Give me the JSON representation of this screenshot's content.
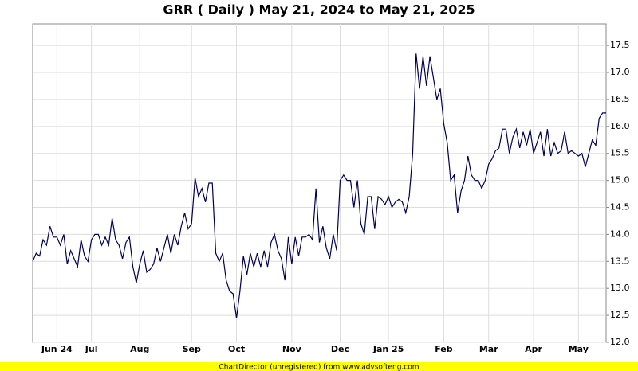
{
  "chart_data": {
    "type": "line",
    "title": "GRR ( Daily ) May 21, 2024 to May 21, 2025",
    "footer": "ChartDirector (unregistered) from www.advsofteng.com",
    "color": "#000050",
    "grid": true,
    "ylim": [
      12.0,
      17.9
    ],
    "yticks": [
      {
        "value": 12,
        "label": "12.0"
      },
      12.5,
      {
        "value": 13,
        "label": "13.0"
      },
      13.5,
      {
        "value": 14,
        "label": "14.0"
      },
      14.5,
      {
        "value": 15,
        "label": "15.0"
      },
      15.5,
      {
        "value": 16,
        "label": "16.0"
      },
      16.5,
      {
        "value": 17,
        "label": "17.0"
      },
      17.5
    ],
    "categories": [
      null,
      null,
      null,
      null,
      null,
      null,
      null,
      "Jun 24",
      null,
      null,
      null,
      null,
      null,
      null,
      null,
      null,
      null,
      "Jul",
      null,
      null,
      null,
      null,
      null,
      null,
      null,
      null,
      null,
      null,
      null,
      null,
      null,
      "Aug",
      null,
      null,
      null,
      null,
      null,
      null,
      null,
      null,
      null,
      null,
      null,
      null,
      null,
      null,
      "Sep",
      null,
      null,
      null,
      null,
      null,
      null,
      null,
      null,
      null,
      null,
      null,
      null,
      "Oct",
      null,
      null,
      null,
      null,
      null,
      null,
      null,
      null,
      null,
      null,
      null,
      null,
      null,
      null,
      null,
      "Nov",
      null,
      null,
      null,
      null,
      null,
      null,
      null,
      null,
      null,
      null,
      null,
      null,
      null,
      "Dec",
      null,
      null,
      null,
      null,
      null,
      null,
      null,
      null,
      null,
      null,
      null,
      null,
      null,
      "Jan 25",
      null,
      null,
      null,
      null,
      null,
      null,
      null,
      null,
      null,
      null,
      null,
      null,
      null,
      null,
      null,
      "Feb",
      null,
      null,
      null,
      null,
      null,
      null,
      null,
      null,
      null,
      null,
      null,
      null,
      "Mar",
      null,
      null,
      null,
      null,
      null,
      null,
      null,
      null,
      null,
      null,
      null,
      null,
      "Apr",
      null,
      null,
      null,
      null,
      null,
      null,
      null,
      null,
      null,
      null,
      null,
      null,
      "May",
      null,
      null,
      null,
      null,
      null,
      null,
      null,
      null
    ],
    "values": [
      13.5,
      13.65,
      13.6,
      13.9,
      13.8,
      14.15,
      13.95,
      13.95,
      13.8,
      14.0,
      13.45,
      13.7,
      13.55,
      13.4,
      13.9,
      13.6,
      13.5,
      13.9,
      14.0,
      14.0,
      13.8,
      13.95,
      13.8,
      14.3,
      13.9,
      13.8,
      13.55,
      13.85,
      13.95,
      13.4,
      13.1,
      13.45,
      13.7,
      13.3,
      13.35,
      13.45,
      13.75,
      13.5,
      13.75,
      14.0,
      13.65,
      14.0,
      13.8,
      14.15,
      14.4,
      14.1,
      14.2,
      15.05,
      14.7,
      14.85,
      14.6,
      14.95,
      14.95,
      13.65,
      13.5,
      13.65,
      13.15,
      12.95,
      12.9,
      12.45,
      12.95,
      13.6,
      13.25,
      13.65,
      13.4,
      13.65,
      13.4,
      13.7,
      13.4,
      13.85,
      14.0,
      13.7,
      13.55,
      13.15,
      13.95,
      13.45,
      13.95,
      13.6,
      13.95,
      13.95,
      14.0,
      13.9,
      14.85,
      13.85,
      14.15,
      13.75,
      13.55,
      14.0,
      13.7,
      15.0,
      15.1,
      15.0,
      15.0,
      14.5,
      15.0,
      14.2,
      14.0,
      14.7,
      14.7,
      14.1,
      14.7,
      14.65,
      14.55,
      14.7,
      14.5,
      14.6,
      14.65,
      14.6,
      14.4,
      14.7,
      15.5,
      17.35,
      16.7,
      17.3,
      16.75,
      17.3,
      16.9,
      16.5,
      16.7,
      16.05,
      15.7,
      15.0,
      15.1,
      14.4,
      14.8,
      15.0,
      15.45,
      15.1,
      15.0,
      15.0,
      14.85,
      15.0,
      15.3,
      15.4,
      15.55,
      15.6,
      15.95,
      15.95,
      15.5,
      15.8,
      15.95,
      15.6,
      15.9,
      15.65,
      15.95,
      15.5,
      15.7,
      15.9,
      15.45,
      15.95,
      15.45,
      15.7,
      15.5,
      15.55,
      15.9,
      15.5,
      15.55,
      15.5,
      15.45,
      15.5,
      15.25,
      15.5,
      15.75,
      15.65,
      16.15,
      16.25,
      16.25
    ]
  }
}
